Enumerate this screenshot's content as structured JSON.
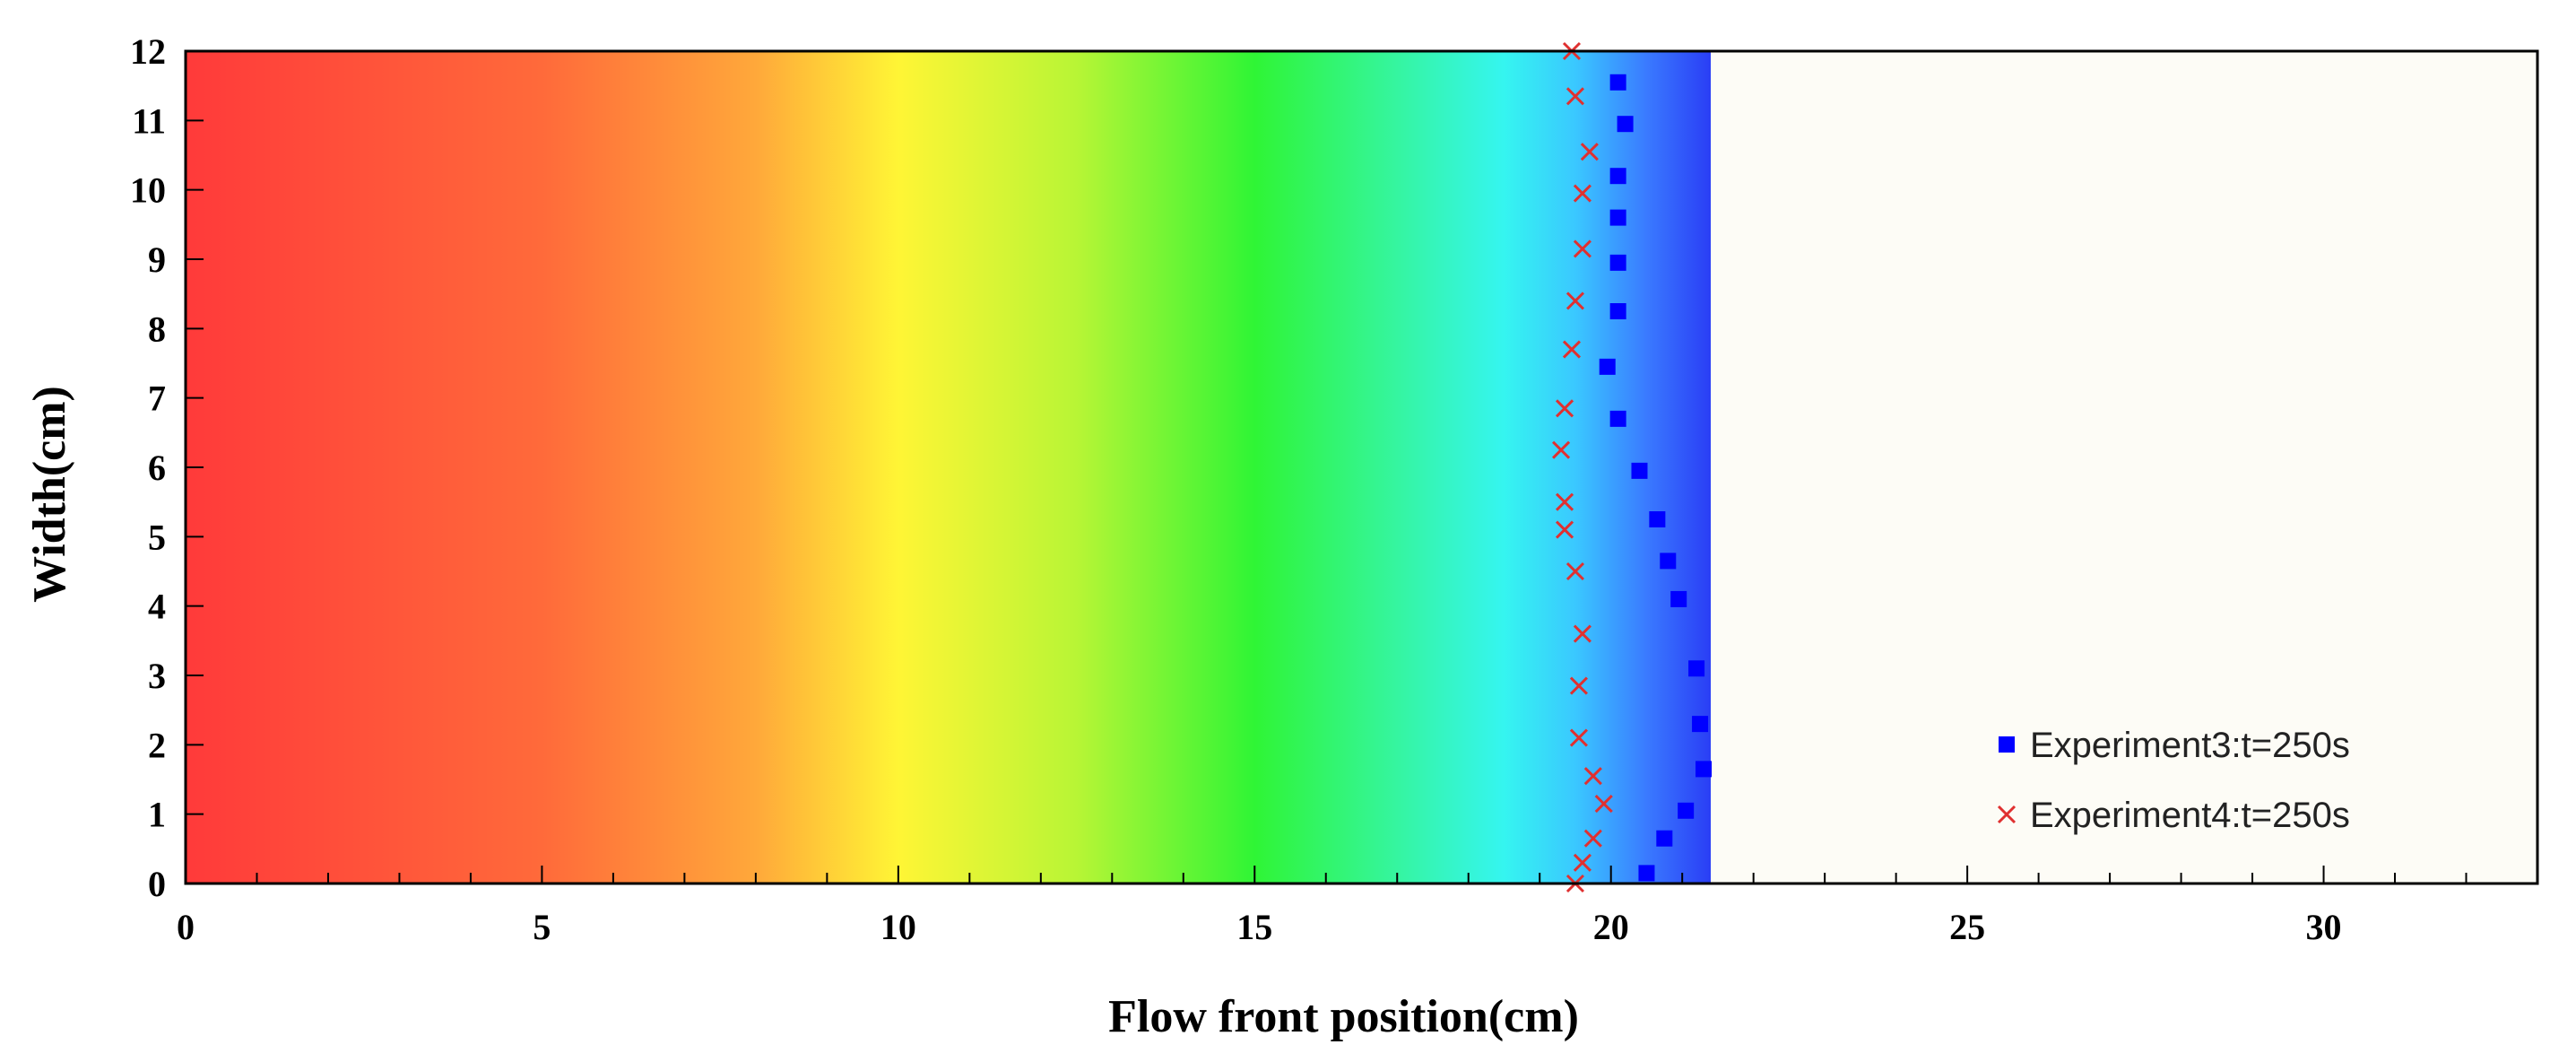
{
  "chart_data": {
    "type": "scatter",
    "title": "",
    "xlabel": "Flow front position(cm)",
    "ylabel": "Width(cm)",
    "xlim": [
      0,
      33
    ],
    "ylim": [
      0,
      12
    ],
    "x_ticks": [
      0,
      5,
      10,
      15,
      20,
      25,
      30
    ],
    "y_ticks": [
      0,
      1,
      2,
      3,
      4,
      5,
      6,
      7,
      8,
      9,
      10,
      11,
      12
    ],
    "x_minor_step": 1,
    "grid": false,
    "legend_position": "bottom-right",
    "background_fill": {
      "description": "colored contour: red at x=0 through orange, yellow, green, cyan to blue at the flow front",
      "front_x": 21.4,
      "empty_color": "#fdfcf6",
      "stops": [
        {
          "x": 0,
          "color": "#ff3a3a"
        },
        {
          "x": 5,
          "color": "#ff6a3a"
        },
        {
          "x": 8,
          "color": "#ffa83a"
        },
        {
          "x": 10,
          "color": "#fff535"
        },
        {
          "x": 12.5,
          "color": "#b8f535"
        },
        {
          "x": 15,
          "color": "#2ff535"
        },
        {
          "x": 17,
          "color": "#35f5a0"
        },
        {
          "x": 18.5,
          "color": "#35f5f0"
        },
        {
          "x": 19.5,
          "color": "#3ac8ff"
        },
        {
          "x": 20.5,
          "color": "#3a7aff"
        },
        {
          "x": 21.4,
          "color": "#2a3ef5"
        }
      ]
    },
    "series": [
      {
        "name": "Experiment3:t=250s",
        "marker": "square",
        "color": "#0000ff",
        "points": [
          {
            "x": 20.1,
            "y": 11.55
          },
          {
            "x": 20.2,
            "y": 10.95
          },
          {
            "x": 20.1,
            "y": 10.2
          },
          {
            "x": 20.1,
            "y": 9.6
          },
          {
            "x": 20.1,
            "y": 8.95
          },
          {
            "x": 20.1,
            "y": 8.25
          },
          {
            "x": 19.95,
            "y": 7.45
          },
          {
            "x": 20.1,
            "y": 6.7
          },
          {
            "x": 20.4,
            "y": 5.95
          },
          {
            "x": 20.65,
            "y": 5.25
          },
          {
            "x": 20.8,
            "y": 4.65
          },
          {
            "x": 20.95,
            "y": 4.1
          },
          {
            "x": 21.2,
            "y": 3.1
          },
          {
            "x": 21.25,
            "y": 2.3
          },
          {
            "x": 21.3,
            "y": 1.65
          },
          {
            "x": 21.05,
            "y": 1.05
          },
          {
            "x": 20.75,
            "y": 0.65
          },
          {
            "x": 20.5,
            "y": 0.15
          }
        ]
      },
      {
        "name": "Experiment4:t=250s",
        "marker": "x",
        "color": "#e03030",
        "points": [
          {
            "x": 19.45,
            "y": 12.0
          },
          {
            "x": 19.5,
            "y": 11.35
          },
          {
            "x": 19.7,
            "y": 10.55
          },
          {
            "x": 19.6,
            "y": 9.95
          },
          {
            "x": 19.6,
            "y": 9.15
          },
          {
            "x": 19.5,
            "y": 8.4
          },
          {
            "x": 19.45,
            "y": 7.7
          },
          {
            "x": 19.35,
            "y": 6.85
          },
          {
            "x": 19.3,
            "y": 6.25
          },
          {
            "x": 19.35,
            "y": 5.5
          },
          {
            "x": 19.35,
            "y": 5.1
          },
          {
            "x": 19.5,
            "y": 4.5
          },
          {
            "x": 19.6,
            "y": 3.6
          },
          {
            "x": 19.55,
            "y": 2.85
          },
          {
            "x": 19.55,
            "y": 2.1
          },
          {
            "x": 19.75,
            "y": 1.55
          },
          {
            "x": 19.9,
            "y": 1.15
          },
          {
            "x": 19.75,
            "y": 0.65
          },
          {
            "x": 19.6,
            "y": 0.3
          },
          {
            "x": 19.5,
            "y": 0.0
          }
        ]
      }
    ]
  }
}
